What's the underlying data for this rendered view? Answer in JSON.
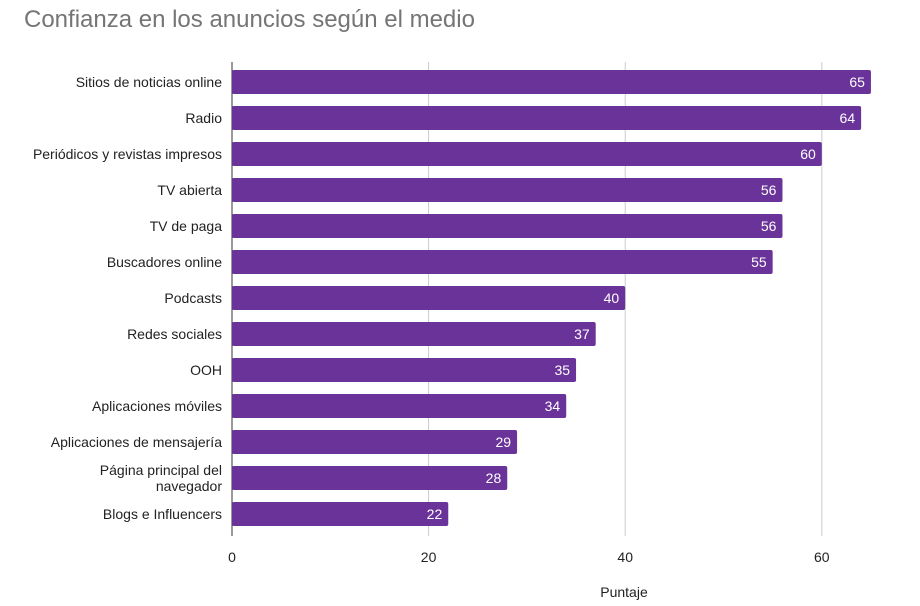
{
  "chart_data": {
    "type": "bar",
    "orientation": "horizontal",
    "title": "Confianza en los anuncios según el medio",
    "xlabel": "Puntaje",
    "ylabel": "",
    "categories": [
      "Sitios de noticias online",
      "Radio",
      "Periódicos y revistas impresos",
      "TV abierta",
      "TV de paga",
      "Buscadores online",
      "Podcasts",
      "Redes sociales",
      "OOH",
      "Aplicaciones móviles",
      "Aplicaciones de mensajería",
      "Página principal del navegador",
      "Blogs e Influencers"
    ],
    "values": [
      65,
      64,
      60,
      56,
      56,
      55,
      40,
      37,
      35,
      34,
      29,
      28,
      22
    ],
    "xlim": [
      0,
      66
    ],
    "xticks": [
      0,
      20,
      40,
      60
    ],
    "grid": true,
    "legend": "none",
    "colors": {
      "bar": "#6a3399",
      "grid": "#cccccc",
      "value_label": "#ffffff"
    }
  }
}
